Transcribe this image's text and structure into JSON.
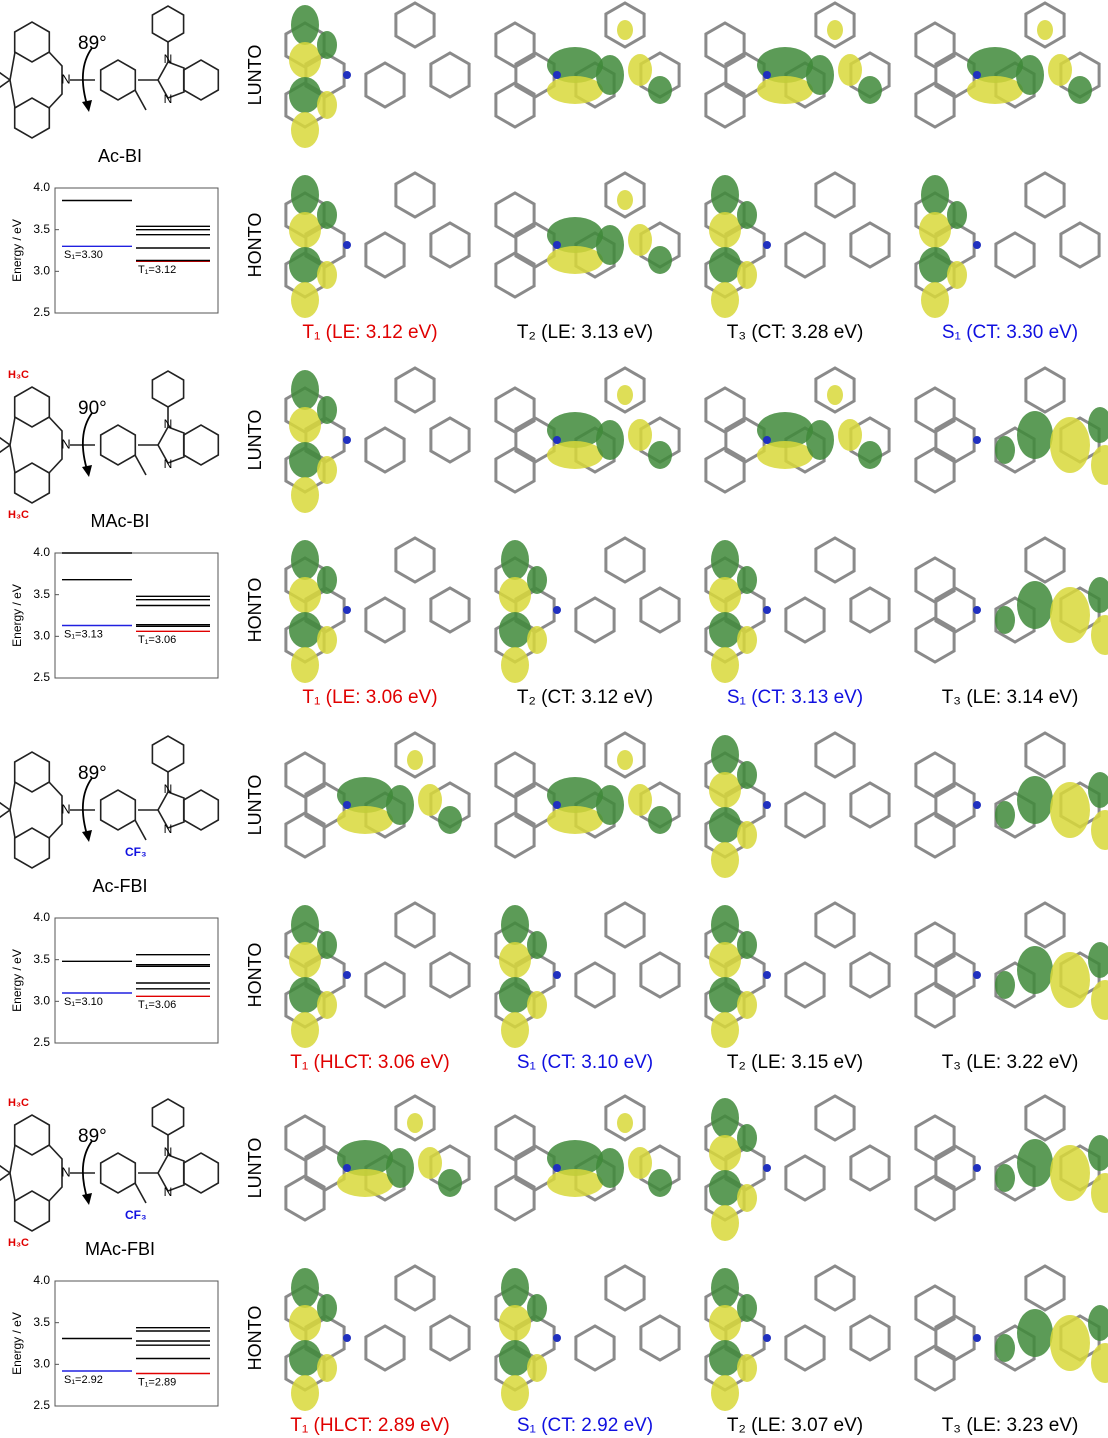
{
  "panels": [
    {
      "molecule": {
        "name": "Ac-BI",
        "angle": "89°",
        "atom_label": "N",
        "methyl_labels": [],
        "cf3_label": null
      },
      "energy_chart": {
        "type": "energy-level",
        "ylabel": "Energy / eV",
        "ylim": [
          2.5,
          4.0
        ],
        "yticks": [
          2.5,
          {
            "value": 3,
            "label": "3.0"
          },
          3.5,
          {
            "value": 4,
            "label": "4.0"
          }
        ],
        "singlet": {
          "values": [
            3.3,
            3.85
          ],
          "value_labels": [
            "S₁=3.30",
            null
          ],
          "colors": [
            "#2020e0",
            "#000000"
          ]
        },
        "triplet": {
          "values": [
            3.12,
            3.13,
            3.28,
            3.44,
            3.5,
            3.54
          ],
          "value_labels": [
            "T₁=3.12",
            null,
            null,
            null,
            null,
            null
          ],
          "colors": [
            "#e00000",
            "#000000",
            "#000000",
            "#000000",
            "#000000",
            "#000000"
          ]
        }
      },
      "row_labels": [
        "LUNTO",
        "HONTO"
      ],
      "states": [
        {
          "label": "T₁ (LE: 3.12 eV)",
          "color": "#e00000"
        },
        {
          "label": "T₂ (LE: 3.13 eV)",
          "color": "#000000"
        },
        {
          "label": "T₃ (CT: 3.28 eV)",
          "color": "#000000"
        },
        {
          "label": "S₁ (CT: 3.30 eV)",
          "color": "#1010e0"
        }
      ]
    },
    {
      "molecule": {
        "name": "MAc-BI",
        "angle": "90°",
        "atom_label": "N",
        "methyl_labels": [
          "H₃C",
          "H₃C"
        ],
        "cf3_label": null
      },
      "energy_chart": {
        "type": "energy-level",
        "ylabel": "Energy / eV",
        "ylim": [
          2.5,
          4.0
        ],
        "yticks": [
          2.5,
          {
            "value": 3,
            "label": "3.0"
          },
          3.5,
          {
            "value": 4,
            "label": "4.0"
          }
        ],
        "singlet": {
          "values": [
            3.13,
            3.68,
            4.0
          ],
          "value_labels": [
            "S₁=3.13",
            null,
            null
          ],
          "colors": [
            "#2020e0",
            "#000000",
            "#000000"
          ]
        },
        "triplet": {
          "values": [
            3.06,
            3.12,
            3.14,
            3.37,
            3.44,
            3.48
          ],
          "value_labels": [
            "T₁=3.06",
            null,
            null,
            null,
            null,
            null
          ],
          "colors": [
            "#e00000",
            "#000000",
            "#000000",
            "#000000",
            "#000000",
            "#000000"
          ]
        }
      },
      "row_labels": [
        "LUNTO",
        "HONTO"
      ],
      "states": [
        {
          "label": "T₁ (LE: 3.06 eV)",
          "color": "#e00000"
        },
        {
          "label": "T₂ (CT: 3.12 eV)",
          "color": "#000000"
        },
        {
          "label": "S₁ (CT: 3.13 eV)",
          "color": "#1010e0"
        },
        {
          "label": "T₃ (LE: 3.14 eV)",
          "color": "#000000"
        }
      ]
    },
    {
      "molecule": {
        "name": "Ac-FBI",
        "angle": "89°",
        "atom_label": "N",
        "methyl_labels": [],
        "cf3_label": "CF₃"
      },
      "energy_chart": {
        "type": "energy-level",
        "ylabel": "Energy / eV",
        "ylim": [
          2.5,
          4.0
        ],
        "yticks": [
          2.5,
          {
            "value": 3,
            "label": "3.0"
          },
          3.5,
          {
            "value": 4,
            "label": "4.0"
          }
        ],
        "singlet": {
          "values": [
            3.1,
            3.48
          ],
          "value_labels": [
            "S₁=3.10",
            null
          ],
          "colors": [
            "#2020e0",
            "#000000"
          ]
        },
        "triplet": {
          "values": [
            3.06,
            3.15,
            3.22,
            3.42,
            3.44,
            3.56
          ],
          "value_labels": [
            "T₁=3.06",
            null,
            null,
            null,
            null,
            null
          ],
          "colors": [
            "#e00000",
            "#000000",
            "#000000",
            "#000000",
            "#000000",
            "#000000"
          ]
        }
      },
      "row_labels": [
        "LUNTO",
        "HONTO"
      ],
      "states": [
        {
          "label": "T₁ (HLCT: 3.06 eV)",
          "color": "#e00000"
        },
        {
          "label": "S₁ (CT: 3.10 eV)",
          "color": "#1010e0"
        },
        {
          "label": "T₂ (LE: 3.15 eV)",
          "color": "#000000"
        },
        {
          "label": "T₃ (LE: 3.22 eV)",
          "color": "#000000"
        }
      ]
    },
    {
      "molecule": {
        "name": "MAc-FBI",
        "angle": "89°",
        "atom_label": "N",
        "methyl_labels": [
          "H₃C",
          "H₃C"
        ],
        "cf3_label": "CF₃"
      },
      "energy_chart": {
        "type": "energy-level",
        "ylabel": "Energy / eV",
        "ylim": [
          2.5,
          4.0
        ],
        "yticks": [
          2.5,
          {
            "value": 3,
            "label": "3.0"
          },
          3.5,
          {
            "value": 4,
            "label": "4.0"
          }
        ],
        "singlet": {
          "values": [
            2.92,
            3.31
          ],
          "value_labels": [
            "S₁=2.92",
            null
          ],
          "colors": [
            "#2020e0",
            "#000000"
          ]
        },
        "triplet": {
          "values": [
            2.89,
            3.07,
            3.23,
            3.28,
            3.4,
            3.44
          ],
          "value_labels": [
            "T₁=2.89",
            null,
            null,
            null,
            null,
            null
          ],
          "colors": [
            "#e00000",
            "#000000",
            "#000000",
            "#000000",
            "#000000",
            "#000000"
          ]
        }
      },
      "row_labels": [
        "LUNTO",
        "HONTO"
      ],
      "states": [
        {
          "label": "T₁ (HLCT: 2.89 eV)",
          "color": "#e00000"
        },
        {
          "label": "S₁ (CT: 2.92 eV)",
          "color": "#1010e0"
        },
        {
          "label": "T₂ (LE: 3.07 eV)",
          "color": "#000000"
        },
        {
          "label": "T₃ (LE: 3.23 eV)",
          "color": "#000000"
        }
      ]
    }
  ]
}
